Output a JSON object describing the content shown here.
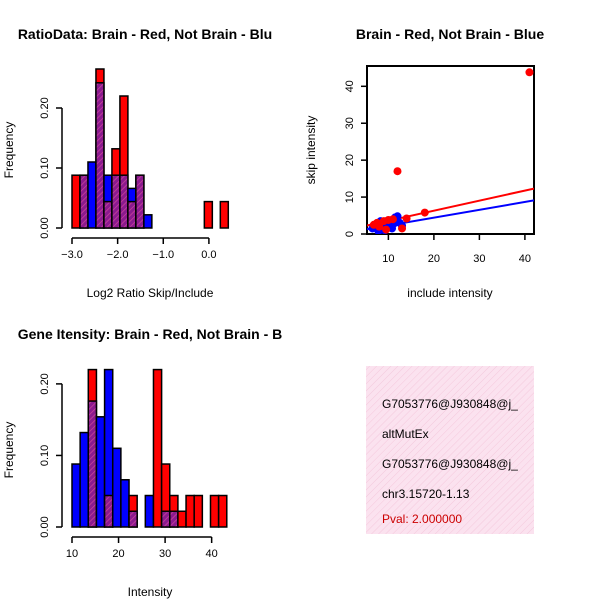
{
  "colors": {
    "brain": "#ff0000",
    "not_brain": "#0000ff",
    "overlap": "#8b1a8f",
    "overlap_hatch": "#cc4499",
    "axis": "#000000",
    "annotation_bg": "#fbe2ef",
    "pval_text": "#cc0000"
  },
  "chart_data": [
    {
      "type": "bar",
      "id": "ratio-histogram",
      "title": "RatioData: Brain - Red, Not Brain - Blu",
      "xlabel": "Log2 Ratio Skip/Include",
      "ylabel": "Frequency",
      "xlim": [
        -3.0,
        0.55
      ],
      "ylim": [
        0,
        0.27
      ],
      "xticks": [
        -3.0,
        -2.0,
        -1.0,
        0.0
      ],
      "xtick_labels": [
        "−3.0",
        "−2.0",
        "−1.0",
        "0.0"
      ],
      "yticks": [
        0.0,
        0.1,
        0.2
      ],
      "ytick_labels": [
        "0.00",
        "0.10",
        "0.20"
      ],
      "bin_width": 0.175,
      "series": [
        {
          "name": "Brain",
          "color": "red",
          "bins": [
            {
              "x0": -3.0,
              "v": 0.088
            },
            {
              "x0": -2.825,
              "v": 0.088
            },
            {
              "x0": -2.475,
              "v": 0.265
            },
            {
              "x0": -2.3,
              "v": 0.044
            },
            {
              "x0": -2.125,
              "v": 0.132
            },
            {
              "x0": -1.95,
              "v": 0.22
            },
            {
              "x0": -1.775,
              "v": 0.044
            },
            {
              "x0": -1.6,
              "v": 0.088
            },
            {
              "x0": -0.1,
              "v": 0.044
            },
            {
              "x0": 0.25,
              "v": 0.044
            }
          ]
        },
        {
          "name": "Not Brain",
          "color": "blue",
          "bins": [
            {
              "x0": -2.825,
              "v": 0.088
            },
            {
              "x0": -2.65,
              "v": 0.11
            },
            {
              "x0": -2.475,
              "v": 0.242
            },
            {
              "x0": -2.3,
              "v": 0.088
            },
            {
              "x0": -2.125,
              "v": 0.088
            },
            {
              "x0": -1.95,
              "v": 0.088
            },
            {
              "x0": -1.775,
              "v": 0.066
            },
            {
              "x0": -1.6,
              "v": 0.088
            },
            {
              "x0": -1.425,
              "v": 0.022
            }
          ]
        }
      ]
    },
    {
      "type": "scatter",
      "id": "scatter-skip-include",
      "title": "Brain - Red, Not Brain - Blue",
      "xlabel": "include intensity",
      "ylabel": "skip intensity",
      "xlim": [
        5.3,
        42
      ],
      "ylim": [
        0,
        45.5
      ],
      "xticks": [
        10,
        20,
        30,
        40
      ],
      "xtick_labels": [
        "10",
        "20",
        "30",
        "40"
      ],
      "yticks": [
        0,
        10,
        20,
        30,
        40
      ],
      "ytick_labels": [
        "0",
        "10",
        "20",
        "30",
        "40"
      ],
      "series": [
        {
          "name": "Not Brain",
          "color": "blue",
          "points": [
            [
              6.5,
              1.5
            ],
            [
              7,
              2
            ],
            [
              7.5,
              1.8
            ],
            [
              8,
              2.5
            ],
            [
              8.5,
              1.2
            ],
            [
              9,
              2.8
            ],
            [
              9.5,
              2
            ],
            [
              10,
              3.2
            ],
            [
              10.5,
              2.5
            ],
            [
              11,
              3.8
            ],
            [
              11.5,
              4.5
            ],
            [
              12,
              4.8
            ],
            [
              12.5,
              3
            ],
            [
              13,
              2.2
            ],
            [
              7.8,
              0.8
            ],
            [
              9.2,
              1
            ],
            [
              10.8,
              1.5
            ],
            [
              8.3,
              3.5
            ],
            [
              11.2,
              2.8
            ]
          ]
        },
        {
          "name": "Brain",
          "color": "red",
          "points": [
            [
              6.8,
              2.5
            ],
            [
              8,
              2
            ],
            [
              9,
              3.5
            ],
            [
              10,
              3.8
            ],
            [
              11,
              4
            ],
            [
              12,
              17
            ],
            [
              13,
              1.5
            ],
            [
              14,
              4.2
            ],
            [
              18,
              5.8
            ],
            [
              41,
              43.8
            ],
            [
              9.5,
              1.2
            ],
            [
              7.5,
              3
            ]
          ]
        }
      ],
      "fit_lines": [
        {
          "name": "Brain",
          "color": "red",
          "x": [
            5.3,
            42
          ],
          "y": [
            2.3,
            12.3
          ]
        },
        {
          "name": "Not Brain",
          "color": "blue",
          "x": [
            5.3,
            42
          ],
          "y": [
            1.3,
            9.1
          ]
        }
      ]
    },
    {
      "type": "bar",
      "id": "intensity-histogram",
      "title": "Gene Itensity: Brain - Red, Not Brain - B",
      "xlabel": "Intensity",
      "ylabel": "Frequency",
      "xlim": [
        10,
        44.8
      ],
      "ylim": [
        0,
        0.225
      ],
      "xticks": [
        10,
        20,
        30,
        40
      ],
      "xtick_labels": [
        "10",
        "20",
        "30",
        "40"
      ],
      "yticks": [
        0.0,
        0.1,
        0.2
      ],
      "ytick_labels": [
        "0.00",
        "0.10",
        "0.20"
      ],
      "bin_width": 1.75,
      "series": [
        {
          "name": "Brain",
          "color": "red",
          "bins": [
            {
              "x0": 13.5,
              "v": 0.22
            },
            {
              "x0": 17.0,
              "v": 0.044
            },
            {
              "x0": 22.25,
              "v": 0.044
            },
            {
              "x0": 27.5,
              "v": 0.22
            },
            {
              "x0": 29.25,
              "v": 0.088
            },
            {
              "x0": 31.0,
              "v": 0.044
            },
            {
              "x0": 32.75,
              "v": 0.022
            },
            {
              "x0": 34.5,
              "v": 0.044
            },
            {
              "x0": 36.25,
              "v": 0.044
            },
            {
              "x0": 39.75,
              "v": 0.044
            },
            {
              "x0": 41.5,
              "v": 0.044
            }
          ]
        },
        {
          "name": "Not Brain",
          "color": "blue",
          "bins": [
            {
              "x0": 10.0,
              "v": 0.088
            },
            {
              "x0": 11.75,
              "v": 0.132
            },
            {
              "x0": 13.5,
              "v": 0.176
            },
            {
              "x0": 15.25,
              "v": 0.154
            },
            {
              "x0": 17.0,
              "v": 0.22
            },
            {
              "x0": 18.75,
              "v": 0.11
            },
            {
              "x0": 20.5,
              "v": 0.066
            },
            {
              "x0": 22.25,
              "v": 0.022
            },
            {
              "x0": 25.75,
              "v": 0.044
            },
            {
              "x0": 29.25,
              "v": 0.022
            },
            {
              "x0": 31.0,
              "v": 0.022
            }
          ]
        }
      ]
    }
  ],
  "annotation": {
    "lines": [
      "G7053776@J930848@j_",
      "altMutEx",
      "G7053776@J930848@j_",
      "chr3.15720-1.13"
    ],
    "pval": "Pval: 2.000000"
  }
}
